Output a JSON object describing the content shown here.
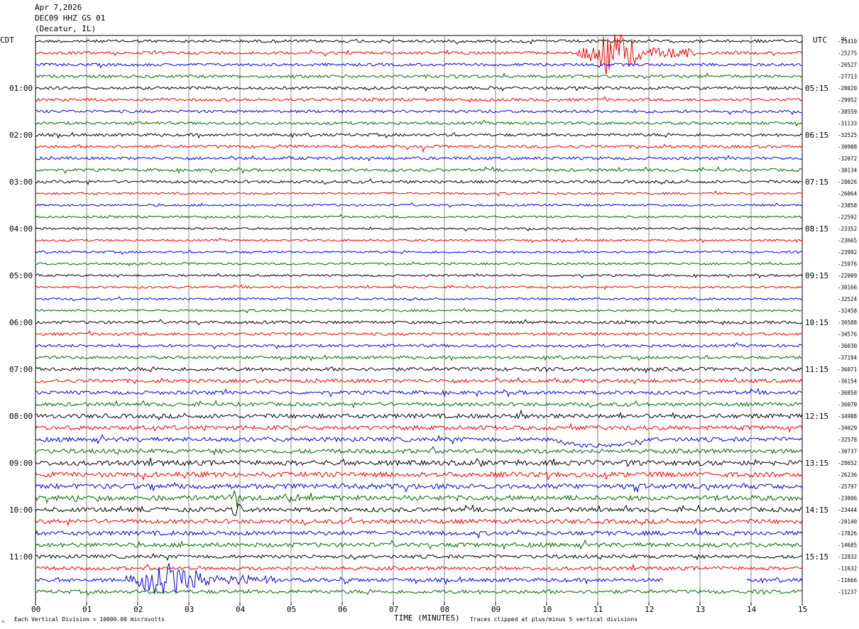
{
  "header": {
    "date": "Apr 7,2026",
    "station": "DEC09 HHZ GS 01",
    "location": "(Decatur, IL)"
  },
  "left_timezone": "CDT",
  "right_timezone": "UTC",
  "dc_label": "DC",
  "footer": {
    "scale_note": "Each Vertical Division = 10000.00 microvolts",
    "clip_note": "Traces clipped at plus/minus 5 vertical divisions",
    "corner_mark": "^"
  },
  "colors": {
    "black": "#000000",
    "red": "#ee0000",
    "blue": "#0000dd",
    "green": "#006600",
    "grid": "#888888"
  },
  "chart_data": {
    "type": "line",
    "title": "DEC09 HHZ GS 01",
    "xlabel": "TIME (MINUTES)",
    "ylabel": "",
    "xlim": [
      0,
      15
    ],
    "x_ticks": [
      "00",
      "01",
      "02",
      "03",
      "04",
      "05",
      "06",
      "07",
      "08",
      "09",
      "10",
      "11",
      "12",
      "13",
      "14",
      "15"
    ],
    "rows_count": 48,
    "color_cycle": [
      "black",
      "red",
      "blue",
      "green"
    ],
    "left_hour_labels": [
      "01:00",
      "02:00",
      "03:00",
      "04:00",
      "05:00",
      "06:00",
      "07:00",
      "08:00",
      "09:00",
      "10:00",
      "11:00"
    ],
    "right_hour_labels": [
      "05:15",
      "06:15",
      "07:15",
      "08:15",
      "09:15",
      "10:15",
      "11:15",
      "12:15",
      "13:15",
      "14:15",
      "15:15"
    ],
    "row_offsets": [
      "-25410",
      "-25275",
      "-26527",
      "-27713",
      "-28020",
      "-29952",
      "-30559",
      "-31133",
      "-32525",
      "-30908",
      "-32072",
      "-30134",
      "-28026",
      "-26064",
      "-23858",
      "-22592",
      "-23352",
      "-23665",
      "-23992",
      "-25976",
      "-22009",
      "-30166",
      "-32524",
      "-32458",
      "-36588",
      "-34576",
      "-36030",
      "-37194",
      "-36071",
      "-36154",
      "-36858",
      "-36070",
      "-34908",
      "-34029",
      "-32578",
      "-30737",
      "-28652",
      "-26236",
      "-25797",
      "-23806",
      "-23444",
      "-20140",
      "-17826",
      "-14685",
      "-12832",
      "-11632",
      "-11666",
      "-11237"
    ],
    "noise_levels": [
      2,
      2,
      2,
      2,
      2,
      2,
      2,
      2,
      2,
      2,
      2,
      2,
      2,
      1.5,
      1.5,
      1.5,
      1.5,
      1.5,
      1.5,
      1.5,
      1.5,
      1.5,
      1.5,
      1.5,
      2,
      2,
      2,
      2,
      2.5,
      2.5,
      2.5,
      2.5,
      3,
      3,
      3,
      3,
      3.5,
      3.5,
      3.5,
      3.5,
      3,
      3,
      3,
      3,
      2.5,
      2.5,
      2.5,
      2.5
    ],
    "events": [
      {
        "row": 1,
        "start_min": 10.6,
        "end_min": 12.9,
        "amplitude": 34,
        "color": "red"
      },
      {
        "row": 9,
        "start_min": 7.5,
        "end_min": 7.8,
        "amplitude": 6,
        "color": "red"
      },
      {
        "row": 9,
        "start_min": 4.6,
        "end_min": 4.8,
        "amplitude": 5,
        "color": "red"
      },
      {
        "row": 32,
        "start_min": 9.4,
        "end_min": 9.7,
        "amplitude": 8,
        "color": "black"
      },
      {
        "row": 39,
        "start_min": 3.8,
        "end_min": 4.2,
        "amplitude": 16,
        "color": "green"
      },
      {
        "row": 40,
        "start_min": 3.85,
        "end_min": 4.15,
        "amplitude": 14,
        "color": "black"
      },
      {
        "row": 46,
        "start_min": 1.7,
        "end_min": 4.8,
        "amplitude": 22,
        "color": "blue"
      },
      {
        "row": 46,
        "start_min": 5.9,
        "end_min": 6.3,
        "amplitude": 9,
        "color": "blue"
      },
      {
        "row": 43,
        "start_min": 7.8,
        "end_min": 8.1,
        "amplitude": 8,
        "color": "green"
      },
      {
        "row": 39,
        "start_min": 4.9,
        "end_min": 5.2,
        "amplitude": 9,
        "color": "green"
      }
    ],
    "drift": {
      "row": 34,
      "start_min": 10.0,
      "end_min": 12.0,
      "amplitude": 9,
      "color": "blue"
    },
    "gap": {
      "row": 46,
      "start_min": 12.3,
      "end_min": 13.9
    }
  }
}
